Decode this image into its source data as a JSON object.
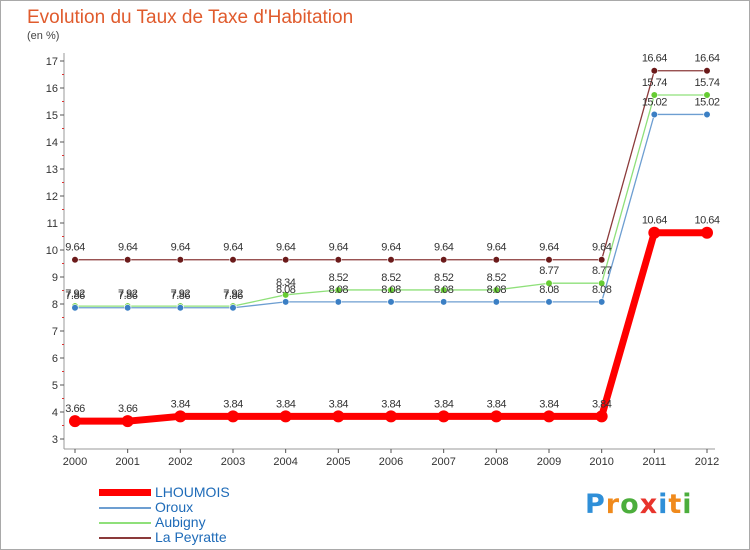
{
  "chart_data": {
    "type": "line",
    "title": "Evolution du Taux de Taxe d'Habitation",
    "ylabel": "(en %)",
    "xlabel": "",
    "categories": [
      "2000",
      "2001",
      "2002",
      "2003",
      "2004",
      "2005",
      "2006",
      "2007",
      "2008",
      "2009",
      "2010",
      "2011",
      "2012"
    ],
    "ylim": [
      3,
      17
    ],
    "yticks": [
      3,
      4,
      5,
      6,
      7,
      8,
      9,
      10,
      11,
      12,
      13,
      14,
      15,
      16,
      17
    ],
    "grid": false,
    "legend_position": "bottom-left",
    "series": [
      {
        "name": "LHOUMOIS",
        "color": "#ff0000",
        "marker_color": "#ff0000",
        "labels": [
          "3.66",
          "3.66",
          "3.84",
          "3.84",
          "3.84",
          "3.84",
          "3.84",
          "3.84",
          "3.84",
          "3.84",
          "3.84",
          "10.64",
          "10.64"
        ],
        "values": [
          3.66,
          3.66,
          3.84,
          3.84,
          3.84,
          3.84,
          3.84,
          3.84,
          3.84,
          3.84,
          3.84,
          10.64,
          10.64
        ]
      },
      {
        "name": "Oroux",
        "color": "#6d9ed1",
        "marker_color": "#3b7fc4",
        "labels": [
          "7.86",
          "7.86",
          "7.86",
          "7.86",
          "8.08",
          "8.08",
          "8.08",
          "8.08",
          "8.08",
          "8.08",
          "8.08",
          "15.02",
          "15.02"
        ],
        "values": [
          7.86,
          7.86,
          7.86,
          7.86,
          8.08,
          8.08,
          8.08,
          8.08,
          8.08,
          8.08,
          8.08,
          15.02,
          15.02
        ]
      },
      {
        "name": "Aubigny",
        "color": "#8fe07a",
        "marker_color": "#66cc33",
        "labels": [
          "7.92",
          "7.92",
          "7.92",
          "7.92",
          "8.34",
          "8.52",
          "8.52",
          "8.52",
          "8.52",
          "8.77",
          "8.77",
          "15.74",
          "15.74"
        ],
        "values": [
          7.92,
          7.92,
          7.92,
          7.92,
          8.34,
          8.52,
          8.52,
          8.52,
          8.52,
          8.77,
          8.77,
          15.74,
          15.74
        ]
      },
      {
        "name": "La Peyratte",
        "color": "#8b3a3a",
        "marker_color": "#6b1a1a",
        "labels": [
          "9.64",
          "9.64",
          "9.64",
          "9.64",
          "9.64",
          "9.64",
          "9.64",
          "9.64",
          "9.64",
          "9.64",
          "9.64",
          "16.64",
          "16.64"
        ],
        "values": [
          9.64,
          9.64,
          9.64,
          9.64,
          9.64,
          9.64,
          9.64,
          9.64,
          9.64,
          9.64,
          9.64,
          16.64,
          16.64
        ]
      }
    ]
  },
  "logo": {
    "letters": [
      "P",
      "r",
      "o",
      "x",
      "i",
      "t",
      "i"
    ],
    "colors": [
      "#2f8fd8",
      "#f08a1c",
      "#4cae3c",
      "#e8342c",
      "#2f8fd8",
      "#f08a1c",
      "#4cae3c"
    ]
  }
}
